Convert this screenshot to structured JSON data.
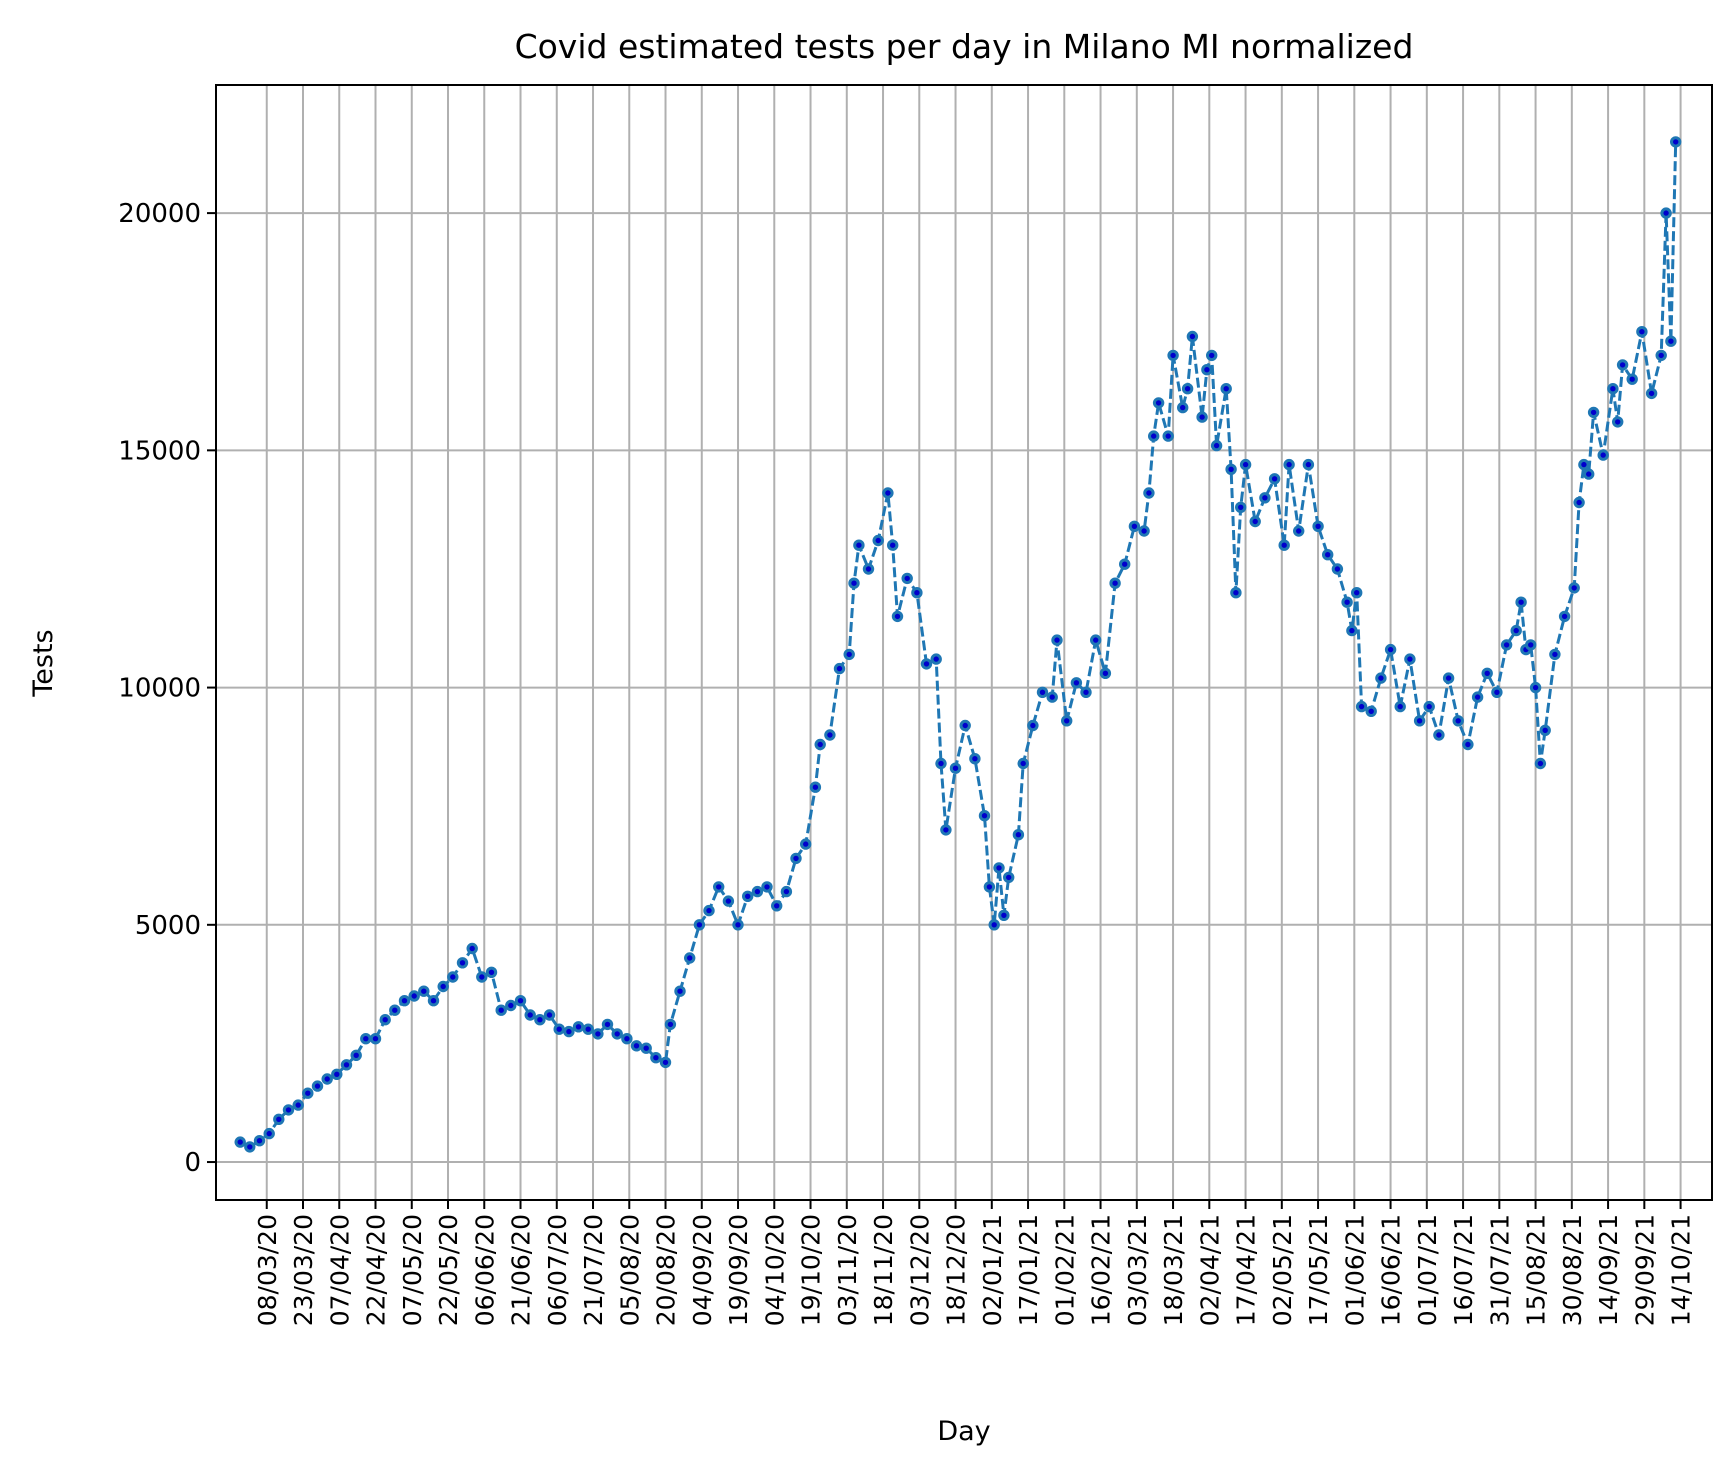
{
  "chart_data": {
    "type": "line",
    "title": "Covid estimated tests per day in Milano MI normalized",
    "xlabel": "Day",
    "ylabel": "Tests",
    "ylim": [
      -800,
      22700
    ],
    "xlim": [
      "2020-02-16",
      "2021-10-27"
    ],
    "grid": true,
    "legend": "none",
    "line_style": "dashed",
    "marker": "dot",
    "colors": {
      "line": "#1f77b4",
      "marker_edge": "#1f77b4",
      "marker_face": "#0000cc",
      "grid": "#b0b0b0"
    },
    "y_ticks": [
      0,
      5000,
      10000,
      15000,
      20000
    ],
    "x_ticks": [
      "08/03/20",
      "23/03/20",
      "07/04/20",
      "22/04/20",
      "07/05/20",
      "22/05/20",
      "06/06/20",
      "21/06/20",
      "06/07/20",
      "21/07/20",
      "05/08/20",
      "20/08/20",
      "04/09/20",
      "19/09/20",
      "04/10/20",
      "19/10/20",
      "03/11/20",
      "18/11/20",
      "03/12/20",
      "18/12/20",
      "02/01/21",
      "17/01/21",
      "01/02/21",
      "16/02/21",
      "03/03/21",
      "18/03/21",
      "02/04/21",
      "17/04/21",
      "02/05/21",
      "17/05/21",
      "01/06/21",
      "16/06/21",
      "01/07/21",
      "16/07/21",
      "31/07/21",
      "15/08/21",
      "30/08/21",
      "14/09/21",
      "29/09/21",
      "14/10/21"
    ],
    "series": [
      {
        "values": [
          [
            "2020-02-26",
            420
          ],
          [
            "2020-03-01",
            320
          ],
          [
            "2020-03-05",
            450
          ],
          [
            "2020-03-09",
            600
          ],
          [
            "2020-03-13",
            900
          ],
          [
            "2020-03-17",
            1100
          ],
          [
            "2020-03-21",
            1200
          ],
          [
            "2020-03-25",
            1450
          ],
          [
            "2020-03-29",
            1600
          ],
          [
            "2020-04-02",
            1750
          ],
          [
            "2020-04-06",
            1850
          ],
          [
            "2020-04-10",
            2050
          ],
          [
            "2020-04-14",
            2250
          ],
          [
            "2020-04-18",
            2600
          ],
          [
            "2020-04-22",
            2600
          ],
          [
            "2020-04-26",
            3000
          ],
          [
            "2020-04-30",
            3200
          ],
          [
            "2020-05-04",
            3400
          ],
          [
            "2020-05-08",
            3500
          ],
          [
            "2020-05-12",
            3600
          ],
          [
            "2020-05-16",
            3400
          ],
          [
            "2020-05-20",
            3700
          ],
          [
            "2020-05-24",
            3900
          ],
          [
            "2020-05-28",
            4200
          ],
          [
            "2020-06-01",
            4500
          ],
          [
            "2020-06-05",
            3900
          ],
          [
            "2020-06-09",
            4000
          ],
          [
            "2020-06-13",
            3200
          ],
          [
            "2020-06-17",
            3300
          ],
          [
            "2020-06-21",
            3400
          ],
          [
            "2020-06-25",
            3100
          ],
          [
            "2020-06-29",
            3000
          ],
          [
            "2020-07-03",
            3100
          ],
          [
            "2020-07-07",
            2800
          ],
          [
            "2020-07-11",
            2750
          ],
          [
            "2020-07-15",
            2850
          ],
          [
            "2020-07-19",
            2800
          ],
          [
            "2020-07-23",
            2700
          ],
          [
            "2020-07-27",
            2900
          ],
          [
            "2020-07-31",
            2700
          ],
          [
            "2020-08-04",
            2600
          ],
          [
            "2020-08-08",
            2450
          ],
          [
            "2020-08-12",
            2400
          ],
          [
            "2020-08-16",
            2200
          ],
          [
            "2020-08-20",
            2100
          ],
          [
            "2020-08-22",
            2900
          ],
          [
            "2020-08-26",
            3600
          ],
          [
            "2020-08-30",
            4300
          ],
          [
            "2020-09-03",
            5000
          ],
          [
            "2020-09-07",
            5300
          ],
          [
            "2020-09-11",
            5800
          ],
          [
            "2020-09-15",
            5500
          ],
          [
            "2020-09-19",
            5000
          ],
          [
            "2020-09-23",
            5600
          ],
          [
            "2020-09-27",
            5700
          ],
          [
            "2020-10-01",
            5800
          ],
          [
            "2020-10-05",
            5400
          ],
          [
            "2020-10-09",
            5700
          ],
          [
            "2020-10-13",
            6400
          ],
          [
            "2020-10-17",
            6700
          ],
          [
            "2020-10-21",
            7900
          ],
          [
            "2020-10-23",
            8800
          ],
          [
            "2020-10-27",
            9000
          ],
          [
            "2020-10-31",
            10400
          ],
          [
            "2020-11-04",
            10700
          ],
          [
            "2020-11-06",
            12200
          ],
          [
            "2020-11-08",
            13000
          ],
          [
            "2020-11-12",
            12500
          ],
          [
            "2020-11-16",
            13100
          ],
          [
            "2020-11-20",
            14100
          ],
          [
            "2020-11-22",
            13000
          ],
          [
            "2020-11-24",
            11500
          ],
          [
            "2020-11-28",
            12300
          ],
          [
            "2020-12-02",
            12000
          ],
          [
            "2020-12-06",
            10500
          ],
          [
            "2020-12-10",
            10600
          ],
          [
            "2020-12-12",
            8400
          ],
          [
            "2020-12-14",
            7000
          ],
          [
            "2020-12-18",
            8300
          ],
          [
            "2020-12-22",
            9200
          ],
          [
            "2020-12-26",
            8500
          ],
          [
            "2020-12-30",
            7300
          ],
          [
            "2021-01-01",
            5800
          ],
          [
            "2021-01-03",
            5000
          ],
          [
            "2021-01-05",
            6200
          ],
          [
            "2021-01-07",
            5200
          ],
          [
            "2021-01-09",
            6000
          ],
          [
            "2021-01-13",
            6900
          ],
          [
            "2021-01-15",
            8400
          ],
          [
            "2021-01-19",
            9200
          ],
          [
            "2021-01-23",
            9900
          ],
          [
            "2021-01-27",
            9800
          ],
          [
            "2021-01-29",
            11000
          ],
          [
            "2021-02-02",
            9300
          ],
          [
            "2021-02-06",
            10100
          ],
          [
            "2021-02-10",
            9900
          ],
          [
            "2021-02-14",
            11000
          ],
          [
            "2021-02-18",
            10300
          ],
          [
            "2021-02-22",
            12200
          ],
          [
            "2021-02-26",
            12600
          ],
          [
            "2021-03-02",
            13400
          ],
          [
            "2021-03-06",
            13300
          ],
          [
            "2021-03-08",
            14100
          ],
          [
            "2021-03-10",
            15300
          ],
          [
            "2021-03-12",
            16000
          ],
          [
            "2021-03-16",
            15300
          ],
          [
            "2021-03-18",
            17000
          ],
          [
            "2021-03-22",
            15900
          ],
          [
            "2021-03-24",
            16300
          ],
          [
            "2021-03-26",
            17400
          ],
          [
            "2021-03-30",
            15700
          ],
          [
            "2021-04-01",
            16700
          ],
          [
            "2021-04-03",
            17000
          ],
          [
            "2021-04-05",
            15100
          ],
          [
            "2021-04-09",
            16300
          ],
          [
            "2021-04-11",
            14600
          ],
          [
            "2021-04-13",
            12000
          ],
          [
            "2021-04-15",
            13800
          ],
          [
            "2021-04-17",
            14700
          ],
          [
            "2021-04-21",
            13500
          ],
          [
            "2021-04-25",
            14000
          ],
          [
            "2021-04-29",
            14400
          ],
          [
            "2021-05-03",
            13000
          ],
          [
            "2021-05-05",
            14700
          ],
          [
            "2021-05-09",
            13300
          ],
          [
            "2021-05-13",
            14700
          ],
          [
            "2021-05-17",
            13400
          ],
          [
            "2021-05-21",
            12800
          ],
          [
            "2021-05-25",
            12500
          ],
          [
            "2021-05-29",
            11800
          ],
          [
            "2021-05-31",
            11200
          ],
          [
            "2021-06-02",
            12000
          ],
          [
            "2021-06-04",
            9600
          ],
          [
            "2021-06-08",
            9500
          ],
          [
            "2021-06-12",
            10200
          ],
          [
            "2021-06-16",
            10800
          ],
          [
            "2021-06-20",
            9600
          ],
          [
            "2021-06-24",
            10600
          ],
          [
            "2021-06-28",
            9300
          ],
          [
            "2021-07-02",
            9600
          ],
          [
            "2021-07-06",
            9000
          ],
          [
            "2021-07-10",
            10200
          ],
          [
            "2021-07-14",
            9300
          ],
          [
            "2021-07-18",
            8800
          ],
          [
            "2021-07-22",
            9800
          ],
          [
            "2021-07-26",
            10300
          ],
          [
            "2021-07-30",
            9900
          ],
          [
            "2021-08-03",
            10900
          ],
          [
            "2021-08-07",
            11200
          ],
          [
            "2021-08-09",
            11800
          ],
          [
            "2021-08-11",
            10800
          ],
          [
            "2021-08-13",
            10900
          ],
          [
            "2021-08-15",
            10000
          ],
          [
            "2021-08-17",
            8400
          ],
          [
            "2021-08-19",
            9100
          ],
          [
            "2021-08-23",
            10700
          ],
          [
            "2021-08-27",
            11500
          ],
          [
            "2021-08-31",
            12100
          ],
          [
            "2021-09-02",
            13900
          ],
          [
            "2021-09-04",
            14700
          ],
          [
            "2021-09-06",
            14500
          ],
          [
            "2021-09-08",
            15800
          ],
          [
            "2021-09-12",
            14900
          ],
          [
            "2021-09-16",
            16300
          ],
          [
            "2021-09-18",
            15600
          ],
          [
            "2021-09-20",
            16800
          ],
          [
            "2021-09-24",
            16500
          ],
          [
            "2021-09-28",
            17500
          ],
          [
            "2021-10-02",
            16200
          ],
          [
            "2021-10-06",
            17000
          ],
          [
            "2021-10-08",
            20000
          ],
          [
            "2021-10-10",
            17300
          ],
          [
            "2021-10-12",
            21500
          ]
        ]
      }
    ]
  }
}
